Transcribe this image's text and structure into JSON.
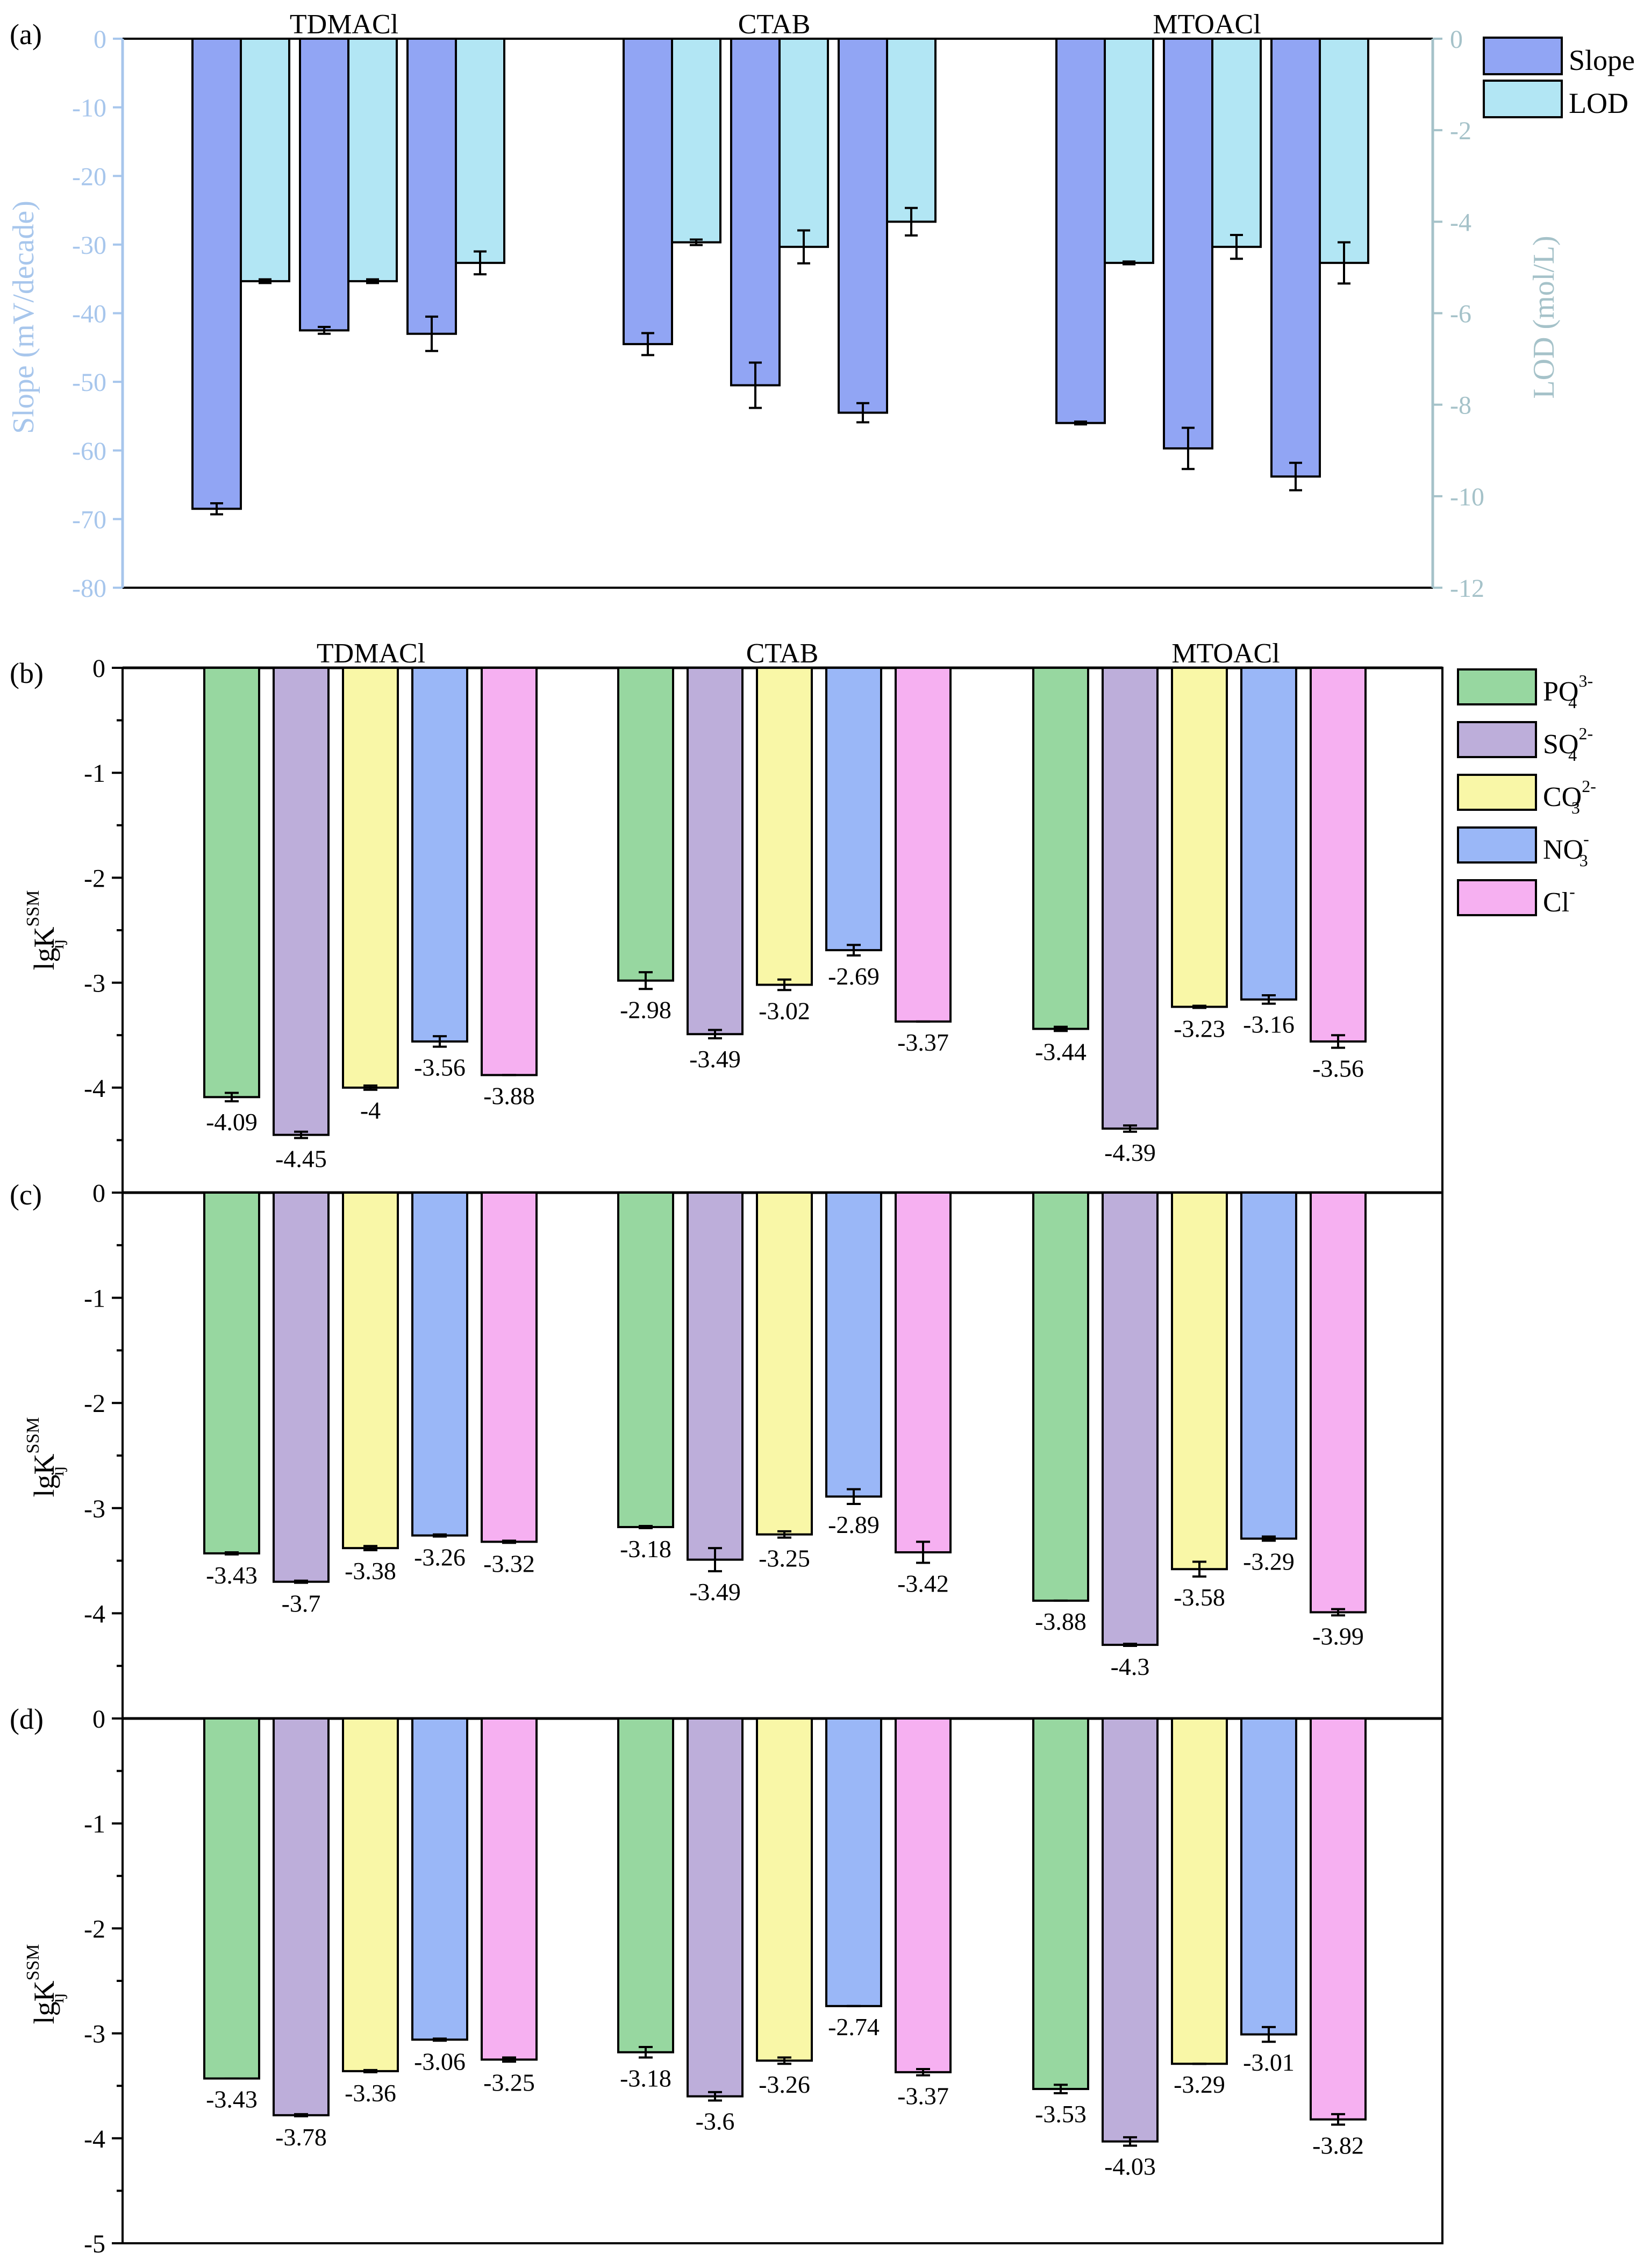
{
  "colors": {
    "slope": "#91A5F4",
    "lod": "#B2E6F4",
    "left_axis_a": "#A7C6EC",
    "right_axis_a": "#A5C2C9",
    "ions": {
      "PO4": "#97D7A0",
      "SO4": "#BDAEDA",
      "CO3": "#F9F7A7",
      "NO3": "#9AB7F7",
      "Cl": "#F6B0F1"
    }
  },
  "chart_data": [
    {
      "panel": "(a)",
      "type": "bar",
      "categories": [
        "TDMACl",
        "CTAB",
        "MTOACl"
      ],
      "group_labels": [
        "TDMACl",
        "CTAB",
        "MTOACl"
      ],
      "ylabel": "Slope (mV/decade)",
      "ylabel_right": "LOD (mol/L)",
      "ylim": [
        -80,
        0
      ],
      "ylim_right": [
        -12,
        0
      ],
      "yticks": [
        "0",
        "-10",
        "-20",
        "-30",
        "-40",
        "-50",
        "-60",
        "-70",
        "-80"
      ],
      "yticks_right": [
        "0",
        "-2",
        "-4",
        "-6",
        "-8",
        "-10",
        "-12"
      ],
      "legend": [
        "Slope",
        "LOD"
      ],
      "legend_position": "top-right",
      "ions_per_group": 3,
      "series": [
        {
          "name": "Slope",
          "axis": "left",
          "values": [
            [
              -68.5,
              -42.5,
              -43
            ],
            [
              -44.5,
              -50.5,
              -54.5
            ],
            [
              -56,
              -59.7,
              -63.8
            ]
          ],
          "errors": [
            [
              0.8,
              0.5,
              2.5
            ],
            [
              1.6,
              3.3,
              1.4
            ],
            [
              0.2,
              3.0,
              2.0
            ]
          ]
        },
        {
          "name": "LOD",
          "axis": "right",
          "values": [
            [
              -5.3,
              -5.3,
              -4.9
            ],
            [
              -4.45,
              -4.55,
              -4.0
            ],
            [
              -4.9,
              -4.55,
              -4.9
            ]
          ],
          "errors": [
            [
              0.04,
              0.04,
              0.25
            ],
            [
              0.06,
              0.36,
              0.3
            ],
            [
              0.03,
              0.26,
              0.45
            ]
          ]
        }
      ]
    },
    {
      "panel": "(b)",
      "type": "bar",
      "ylabel": "lgK",
      "ylabel_sup": "SSM",
      "ylabel_sub": "ij",
      "ylim": [
        -5,
        0
      ],
      "yticks": [
        "0",
        "-1",
        "-2",
        "-3",
        "-4"
      ],
      "group_labels": [
        "TDMACl",
        "CTAB",
        "MTOACl"
      ],
      "series_names": [
        "PO4",
        "SO4",
        "CO3",
        "NO3",
        "Cl"
      ],
      "legend": [
        {
          "base": "PO",
          "sub": "4",
          "sup": "3-"
        },
        {
          "base": "SO",
          "sub": "4",
          "sup": "2-"
        },
        {
          "base": "CO",
          "sub": "3",
          "sup": "2-"
        },
        {
          "base": "NO",
          "sub": "3",
          "sup": "-"
        },
        {
          "base": "Cl",
          "sub": "",
          "sup": "-"
        }
      ],
      "legend_position": "top-right",
      "values": [
        [
          -4.09,
          -4.45,
          -4.0,
          -3.56,
          -3.88
        ],
        [
          -2.98,
          -3.49,
          -3.02,
          -2.69,
          -3.37
        ],
        [
          -3.44,
          -4.39,
          -3.23,
          -3.16,
          -3.56
        ]
      ],
      "labels": [
        [
          "-4.09",
          "-4.45",
          "-4",
          "-3.56",
          "-3.88"
        ],
        [
          "-2.98",
          "-3.49",
          "-3.02",
          "-2.69",
          "-3.37"
        ],
        [
          "-3.44",
          "-4.39",
          "-3.23",
          "-3.16",
          "-3.56"
        ]
      ],
      "errors": [
        [
          0.04,
          0.03,
          0.02,
          0.05,
          0.0
        ],
        [
          0.08,
          0.04,
          0.05,
          0.05,
          0.0
        ],
        [
          0.02,
          0.03,
          0.01,
          0.04,
          0.06
        ]
      ]
    },
    {
      "panel": "(c)",
      "type": "bar",
      "ylabel": "lgK",
      "ylabel_sup": "SSM",
      "ylabel_sub": "ij",
      "ylim": [
        -5,
        0
      ],
      "yticks": [
        "0",
        "-1",
        "-2",
        "-3",
        "-4"
      ],
      "series_names": [
        "PO4",
        "SO4",
        "CO3",
        "NO3",
        "Cl"
      ],
      "values": [
        [
          -3.43,
          -3.7,
          -3.38,
          -3.26,
          -3.32
        ],
        [
          -3.18,
          -3.49,
          -3.25,
          -2.89,
          -3.42
        ],
        [
          -3.88,
          -4.3,
          -3.58,
          -3.29,
          -3.99
        ]
      ],
      "labels": [
        [
          "-3.43",
          "-3.7",
          "-3.38",
          "-3.26",
          "-3.32"
        ],
        [
          "-3.18",
          "-3.49",
          "-3.25",
          "-2.89",
          "-3.42"
        ],
        [
          "-3.88",
          "-4.3",
          "-3.58",
          "-3.29",
          "-3.99"
        ]
      ],
      "errors": [
        [
          0.01,
          0.01,
          0.02,
          0.01,
          0.01
        ],
        [
          0.01,
          0.11,
          0.03,
          0.07,
          0.1
        ],
        [
          0.0,
          0.01,
          0.07,
          0.02,
          0.03
        ]
      ]
    },
    {
      "panel": "(d)",
      "type": "bar",
      "ylabel": "lgK",
      "ylabel_sup": "SSM",
      "ylabel_sub": "ij",
      "ylim": [
        -5,
        0
      ],
      "yticks": [
        "0",
        "-1",
        "-2",
        "-3",
        "-4",
        "-5"
      ],
      "series_names": [
        "PO4",
        "SO4",
        "CO3",
        "NO3",
        "Cl"
      ],
      "values": [
        [
          -3.43,
          -3.78,
          -3.36,
          -3.06,
          -3.25
        ],
        [
          -3.18,
          -3.6,
          -3.26,
          -2.74,
          -3.37
        ],
        [
          -3.53,
          -4.03,
          -3.29,
          -3.01,
          -3.82
        ]
      ],
      "labels": [
        [
          "-3.43",
          "-3.78",
          "-3.36",
          "-3.06",
          "-3.25"
        ],
        [
          "-3.18",
          "-3.6",
          "-3.26",
          "-2.74",
          "-3.37"
        ],
        [
          "-3.53",
          "-4.03",
          "-3.29",
          "-3.01",
          "-3.82"
        ]
      ],
      "errors": [
        [
          0.0,
          0.01,
          0.01,
          0.01,
          0.02
        ],
        [
          0.05,
          0.04,
          0.03,
          0.0,
          0.03
        ],
        [
          0.04,
          0.04,
          0.0,
          0.07,
          0.05
        ]
      ]
    }
  ]
}
